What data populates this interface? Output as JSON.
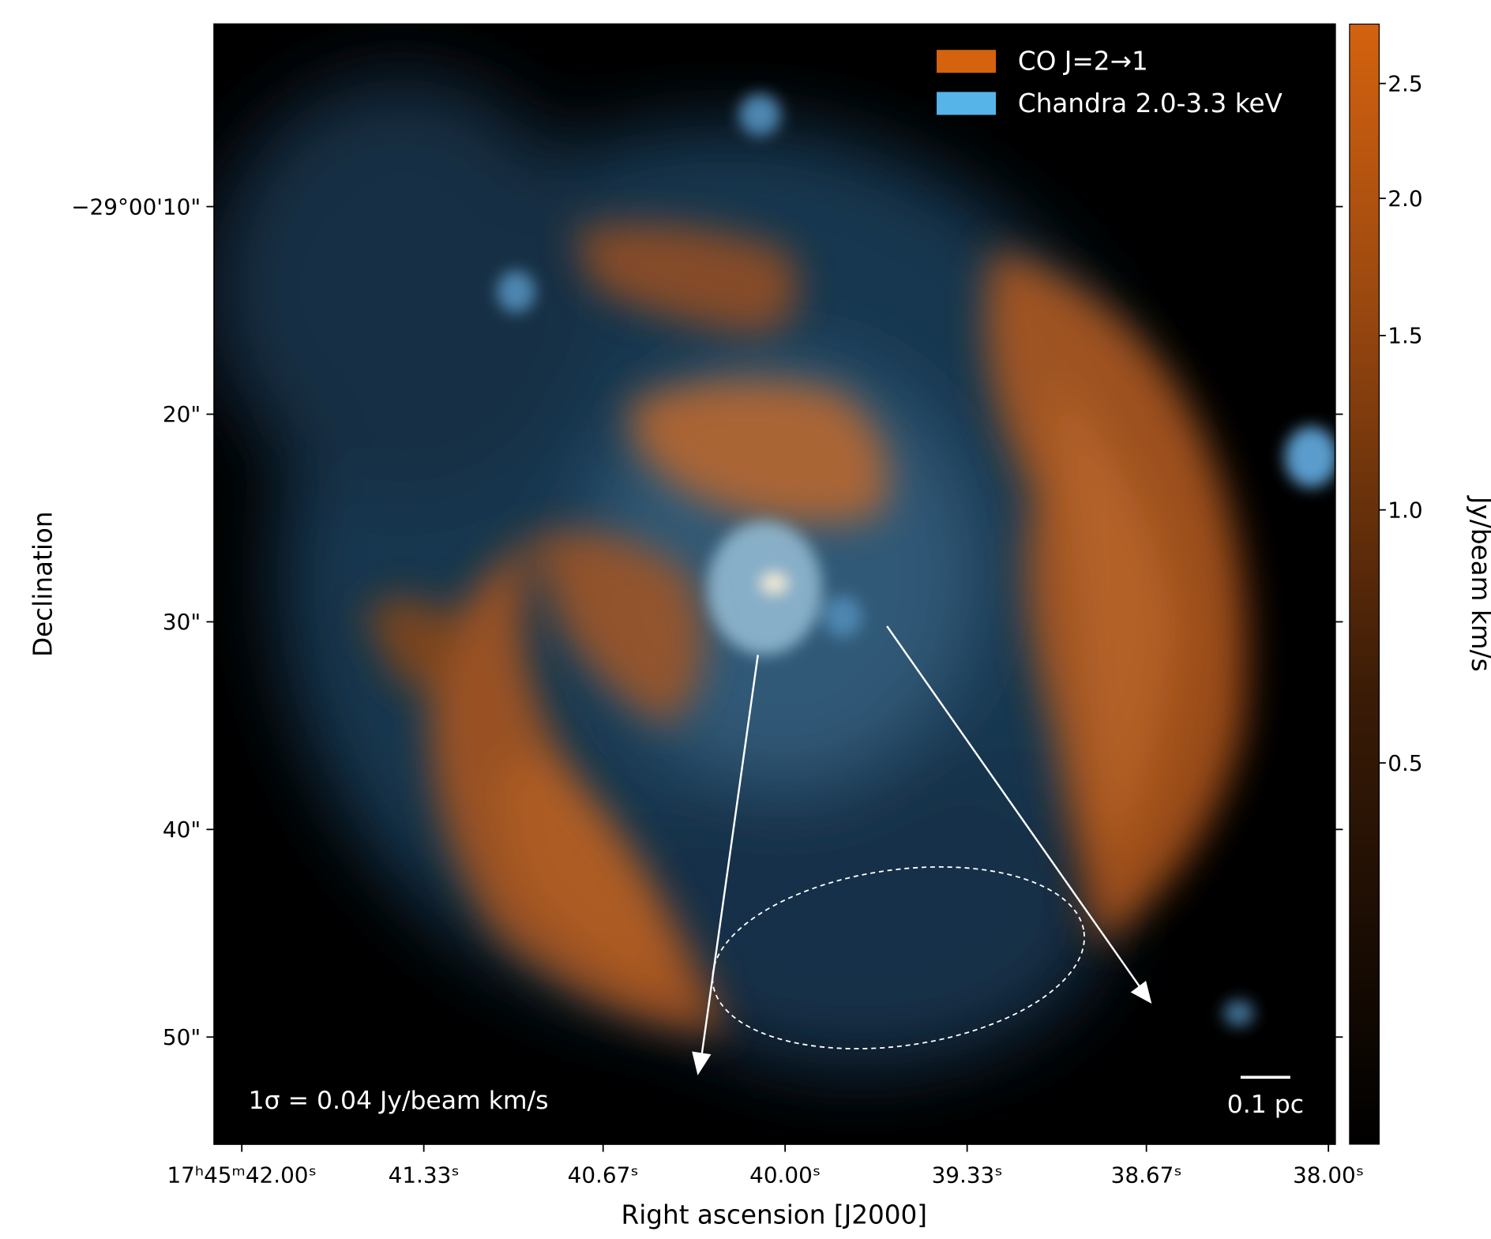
{
  "chart_data": {
    "type": "image",
    "xlabel": "Right ascension [J2000]",
    "ylabel": "Declination",
    "xlim": [
      42.102,
      37.975
    ],
    "xticks": [
      {
        "value": 42.0,
        "label": "17ʰ45ᵐ42.00ˢ"
      },
      {
        "value": 41.33,
        "label": "41.33ˢ"
      },
      {
        "value": 40.67,
        "label": "40.67ˢ"
      },
      {
        "value": 40.0,
        "label": "40.00ˢ"
      },
      {
        "value": 39.33,
        "label": "39.33ˢ"
      },
      {
        "value": 38.67,
        "label": "38.67ˢ"
      },
      {
        "value": 38.0,
        "label": "38.00ˢ"
      }
    ],
    "ylim": [
      -55.16,
      -1.21
    ],
    "yticks": [
      {
        "value": -10,
        "label": "−29°00'10\""
      },
      {
        "value": -20,
        "label": "20\""
      },
      {
        "value": -30,
        "label": "30\""
      },
      {
        "value": -40,
        "label": "40\""
      },
      {
        "value": -50,
        "label": "50\""
      }
    ],
    "series": [
      {
        "name": "CO J=2→1",
        "color": "#d4620f"
      },
      {
        "name": "Chandra 2.0-3.3 keV",
        "color": "#56b4e9"
      }
    ],
    "legend_position": "upper right",
    "colorbar": {
      "label": "Jy/beam km/s",
      "lim": [
        0.12,
        2.79
      ],
      "stretch": "power",
      "power": 0.3,
      "color": "#d4620f",
      "ticks": [
        {
          "value": 0.5,
          "label": "0.5"
        },
        {
          "value": 1.0,
          "label": "1.0"
        },
        {
          "value": 1.5,
          "label": "1.5"
        },
        {
          "value": 2.0,
          "label": "2.0"
        },
        {
          "value": 2.5,
          "label": "2.5"
        }
      ]
    },
    "annotations": [
      "1σ = 0.04 Jy/beam km/s",
      "0.1 pc"
    ]
  }
}
